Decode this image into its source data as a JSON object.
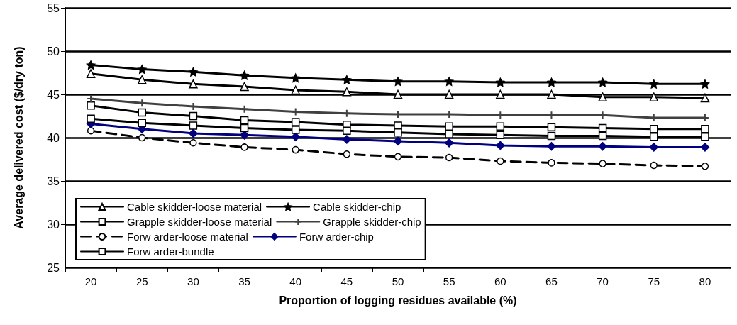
{
  "chart_data": {
    "type": "line",
    "xlabel": "Proportion of logging residues available (%)",
    "ylabel": "Average delivered cost ($/dry ton)",
    "categories": [
      "20",
      "25",
      "30",
      "35",
      "40",
      "45",
      "50",
      "55",
      "60",
      "65",
      "70",
      "75",
      "80"
    ],
    "ylim": [
      25,
      55
    ],
    "yticks": [
      25,
      30,
      35,
      40,
      45,
      50,
      55
    ],
    "grid": "y",
    "legend": "bottom left",
    "series": [
      {
        "name": "Cable skidder-loose material",
        "color": "#000000",
        "marker": "triangle",
        "values": [
          47.4,
          46.7,
          46.2,
          45.9,
          45.5,
          45.3,
          45.0,
          45.0,
          45.0,
          45.0,
          44.7,
          44.7,
          44.6
        ]
      },
      {
        "name": "Cable skidder-chip",
        "color": "#000000",
        "marker": "star",
        "values": [
          48.4,
          47.9,
          47.6,
          47.2,
          46.9,
          46.7,
          46.5,
          46.5,
          46.4,
          46.4,
          46.4,
          46.2,
          46.2
        ]
      },
      {
        "name": "Grapple skidder-loose material",
        "color": "#000000",
        "marker": "square",
        "values": [
          43.7,
          42.9,
          42.5,
          42.0,
          41.8,
          41.5,
          41.4,
          41.3,
          41.3,
          41.2,
          41.1,
          41.0,
          41.0
        ]
      },
      {
        "name": "Grapple skidder-chip",
        "color": "#404040",
        "marker": "cross",
        "values": [
          44.5,
          44.0,
          43.6,
          43.3,
          43.0,
          42.8,
          42.7,
          42.7,
          42.6,
          42.6,
          42.6,
          42.3,
          42.3
        ]
      },
      {
        "name": "Forw arder-loose material",
        "color": "#000000",
        "marker": "circle",
        "line_style": "dashed",
        "values": [
          40.8,
          40.0,
          39.4,
          38.9,
          38.6,
          38.1,
          37.8,
          37.7,
          37.3,
          37.1,
          37.0,
          36.8,
          36.7
        ]
      },
      {
        "name": "Forw arder-chip",
        "color": "#000080",
        "marker": "diamond",
        "values": [
          41.6,
          41.0,
          40.5,
          40.3,
          40.1,
          39.8,
          39.6,
          39.4,
          39.1,
          39.0,
          39.0,
          38.9,
          38.9
        ]
      },
      {
        "name": "Forw arder-bundle",
        "color": "#000000",
        "marker": "square",
        "values": [
          42.2,
          41.7,
          41.4,
          41.1,
          40.9,
          40.8,
          40.6,
          40.4,
          40.3,
          40.2,
          40.2,
          40.1,
          40.1
        ]
      }
    ]
  }
}
